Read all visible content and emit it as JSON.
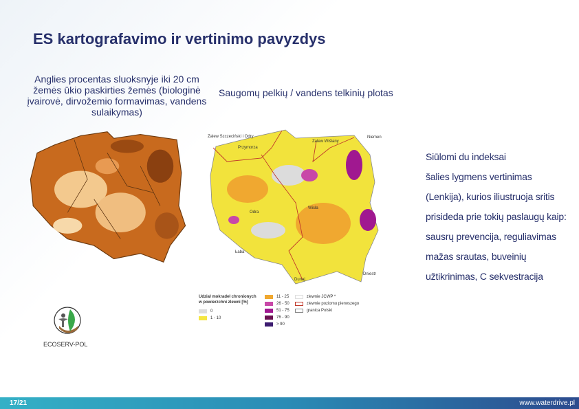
{
  "title": "ES kartografavimo ir vertinimo pavyzdys",
  "left_caption": "Anglies procentas sluoksnyje iki 20 cm žemės ūkio paskirties žemės (biologinė įvairovė, dirvožemio formavimas, vandens sulaikymas)",
  "right_caption": "Saugomų pelkių / vandens telkinių plotas",
  "side_text": [
    "Siūlomi du indeksai",
    "šalies lygmens vertinimas",
    "(Lenkija), kurios iliustruoja sritis",
    "prisideda prie tokių paslaugų kaip:",
    "sausrų prevencija, reguliavimas",
    "mažas srautas, buveinių",
    "užtikrinimas, C sekvestracija"
  ],
  "map_labels": {
    "zalew_szczecinski": "Zalew Szczeciński i Odry",
    "przymorze": "Przymorza",
    "zalew_wislany": "Zalew Wiślany",
    "niemen": "Niemen",
    "odra": "Odra",
    "wisla": "Wisła",
    "laba": "Łaba",
    "dunaj": "Dunaj",
    "dniestr": "Dniestr"
  },
  "legend": {
    "title": "Udział mokradeł chronionych w powierzchni zlewni [%]",
    "classes": [
      {
        "label": "0",
        "color": "#dcdcdc"
      },
      {
        "label": "1 - 10",
        "color": "#f5e642"
      },
      {
        "label": "11 - 25",
        "color": "#f0a830"
      },
      {
        "label": "26 - 50",
        "color": "#c848a8"
      },
      {
        "label": "51 - 75",
        "color": "#a01890"
      },
      {
        "label": "76 - 90",
        "color": "#6a1050"
      },
      {
        "label": "> 90",
        "color": "#3c1c70"
      }
    ],
    "lines": [
      {
        "label": "zlewnie JCWP *"
      },
      {
        "label": "zlewnie poziomu pierwszego"
      },
      {
        "label": "granica Polski"
      }
    ]
  },
  "logo_text": "ECOSERV-POL",
  "footer": {
    "page": "17/21",
    "url": "www.waterdrive.pl"
  }
}
